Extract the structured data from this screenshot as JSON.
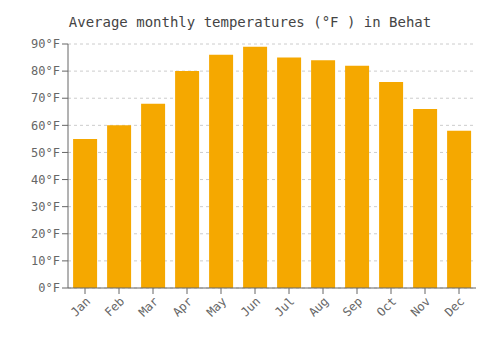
{
  "chart_data": {
    "type": "bar",
    "title": "Average monthly temperatures (°F ) in Behat",
    "categories": [
      "Jan",
      "Feb",
      "Mar",
      "Apr",
      "May",
      "Jun",
      "Jul",
      "Aug",
      "Sep",
      "Oct",
      "Nov",
      "Dec"
    ],
    "values": [
      55,
      60,
      68,
      80,
      86,
      89,
      85,
      84,
      82,
      76,
      66,
      58
    ],
    "color": "#F5A800",
    "ylim": [
      0,
      90
    ],
    "yticks": [
      {
        "value": 0,
        "label": "0°F"
      },
      {
        "value": 10,
        "label": "10°F"
      },
      {
        "value": 20,
        "label": "20°F"
      },
      {
        "value": 30,
        "label": "30°F"
      },
      {
        "value": 40,
        "label": "40°F"
      },
      {
        "value": 50,
        "label": "50°F"
      },
      {
        "value": 60,
        "label": "60°F"
      },
      {
        "value": 70,
        "label": "70°F"
      },
      {
        "value": 80,
        "label": "80°F"
      },
      {
        "value": 90,
        "label": "90°F"
      }
    ],
    "grid": true
  }
}
